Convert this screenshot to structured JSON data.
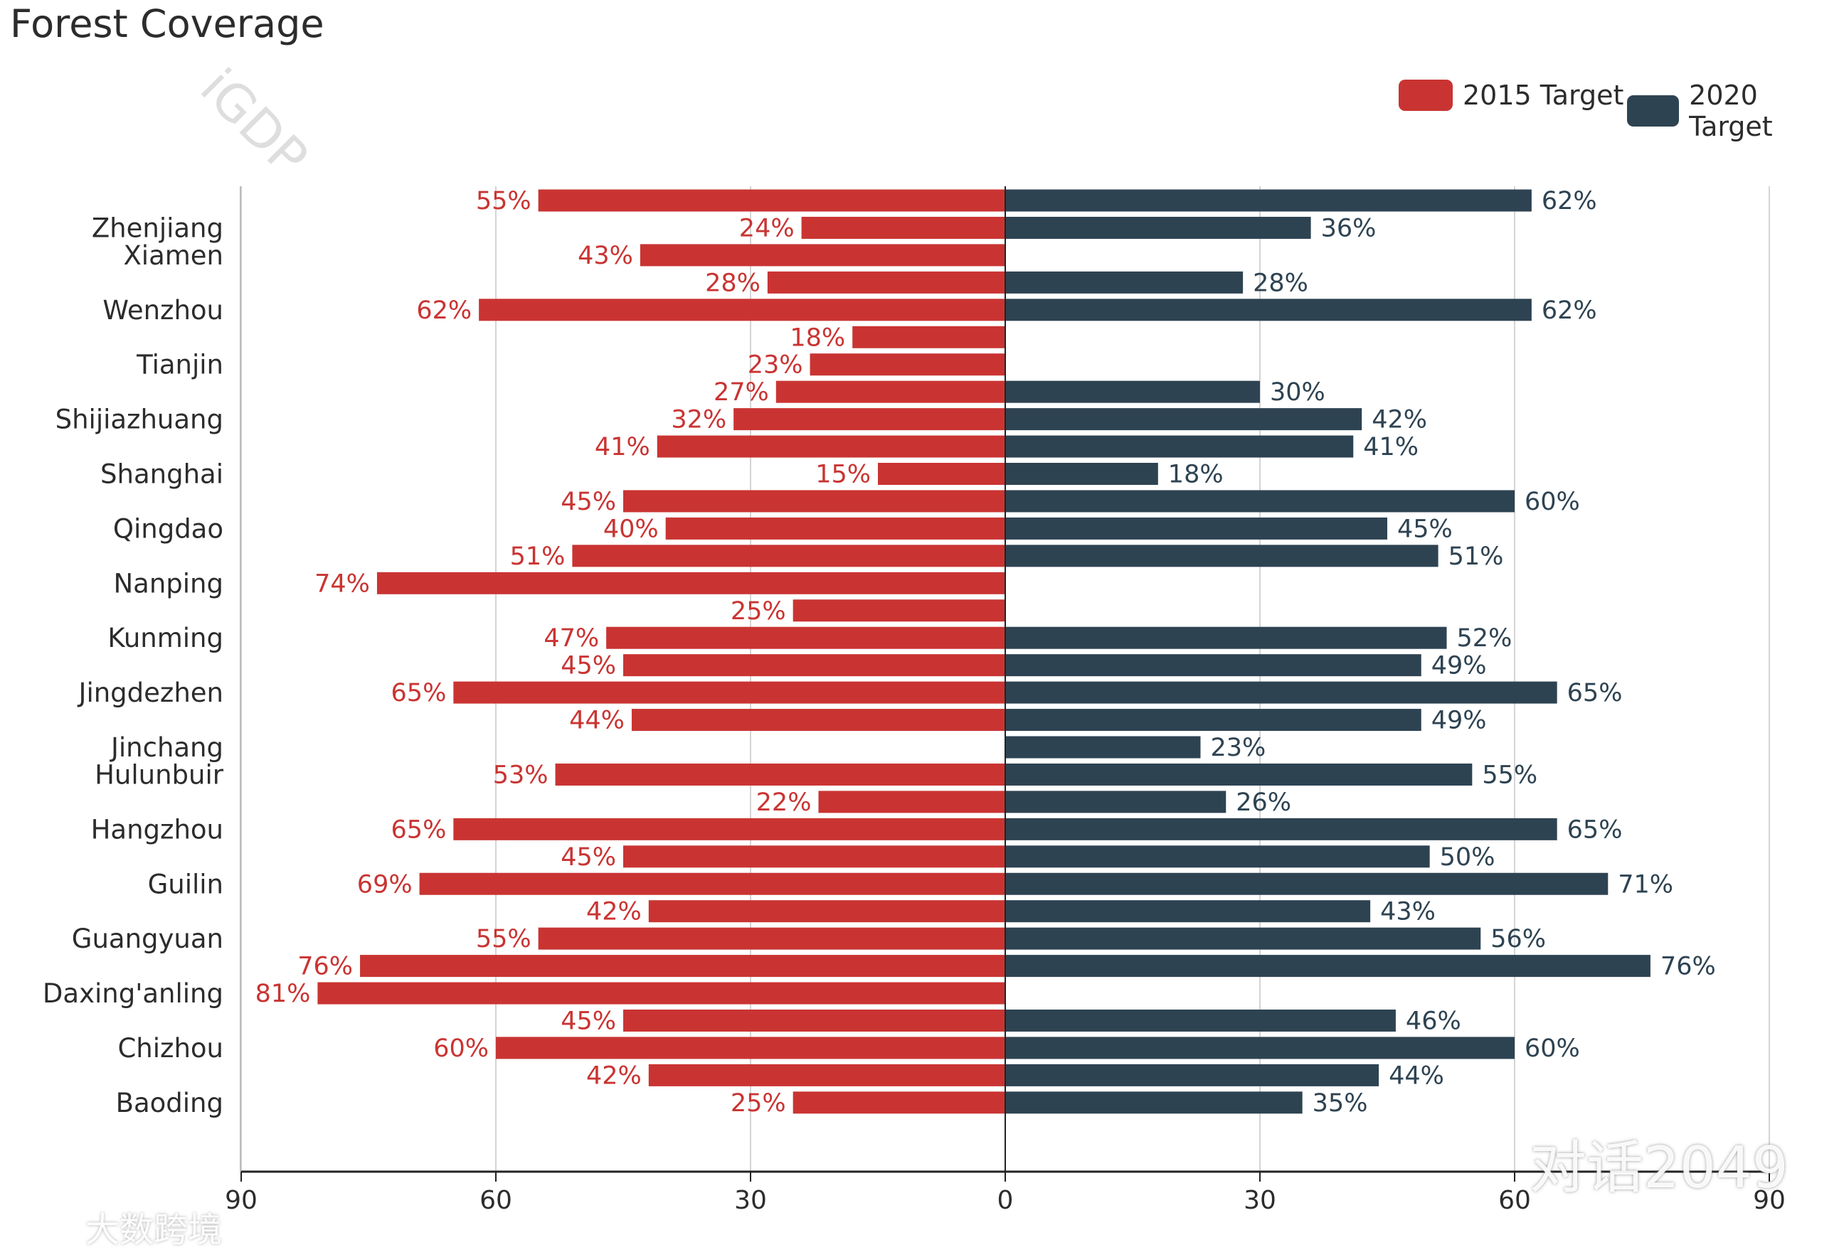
{
  "chart_data": {
    "type": "bar",
    "orientation": "horizontal-diverging",
    "title": "Forest Coverage",
    "categories": [
      "Zhenjiang",
      "Xiamen",
      "Wenzhou",
      "Tianjin",
      "Shijiazhuang",
      "Shanghai",
      "Qingdao",
      "Nanping",
      "Kunming",
      "Jingdezhen",
      "Jinchang",
      "Hulunbuir",
      "Hangzhou",
      "Guilin",
      "Guangyuan",
      "Daxing'anling",
      "Chizhou",
      "Baoding"
    ],
    "rows": [
      {
        "t2015": 55,
        "t2020": 62
      },
      {
        "t2015": 24,
        "t2020": 36,
        "category": "Zhenjiang"
      },
      {
        "t2015": 43,
        "t2020": null,
        "category": "Xiamen"
      },
      {
        "t2015": 28,
        "t2020": 28
      },
      {
        "t2015": 62,
        "t2020": 62,
        "category": "Wenzhou"
      },
      {
        "t2015": 18,
        "t2020": null
      },
      {
        "t2015": 23,
        "t2020": null,
        "category": "Tianjin"
      },
      {
        "t2015": 27,
        "t2020": 30
      },
      {
        "t2015": 32,
        "t2020": 42,
        "category": "Shijiazhuang"
      },
      {
        "t2015": 41,
        "t2020": 41
      },
      {
        "t2015": 15,
        "t2020": 18,
        "category": "Shanghai"
      },
      {
        "t2015": 45,
        "t2020": 60
      },
      {
        "t2015": 40,
        "t2020": 45,
        "category": "Qingdao"
      },
      {
        "t2015": 51,
        "t2020": 51
      },
      {
        "t2015": 74,
        "t2020": null,
        "category": "Nanping"
      },
      {
        "t2015": 25,
        "t2020": null
      },
      {
        "t2015": 47,
        "t2020": 52,
        "category": "Kunming"
      },
      {
        "t2015": 45,
        "t2020": 49
      },
      {
        "t2015": 65,
        "t2020": 65,
        "category": "Jingdezhen"
      },
      {
        "t2015": 44,
        "t2020": 49
      },
      {
        "t2015": null,
        "t2020": 23,
        "category": "Jinchang"
      },
      {
        "t2015": 53,
        "t2020": 55,
        "category": "Hulunbuir"
      },
      {
        "t2015": 22,
        "t2020": 26
      },
      {
        "t2015": 65,
        "t2020": 65,
        "category": "Hangzhou"
      },
      {
        "t2015": 45,
        "t2020": 50
      },
      {
        "t2015": 69,
        "t2020": 71,
        "category": "Guilin"
      },
      {
        "t2015": 42,
        "t2020": 43
      },
      {
        "t2015": 55,
        "t2020": 56,
        "category": "Guangyuan"
      },
      {
        "t2015": 76,
        "t2020": 76
      },
      {
        "t2015": 81,
        "t2020": null,
        "category": "Daxing'anling"
      },
      {
        "t2015": 45,
        "t2020": 46
      },
      {
        "t2015": 60,
        "t2020": 60,
        "category": "Chizhou"
      },
      {
        "t2015": 42,
        "t2020": 44
      },
      {
        "t2015": 25,
        "t2020": 35,
        "category": "Baoding"
      }
    ],
    "series": [
      {
        "key": "t2015",
        "name": "2015 Target",
        "color": "#c93432",
        "side": "left"
      },
      {
        "key": "t2020",
        "name": "2020 Target",
        "color": "#2e4352",
        "side": "right"
      }
    ],
    "xticks": [
      "90",
      "60",
      "30",
      "0",
      "30",
      "60",
      "90"
    ],
    "xlim": [
      -90,
      90
    ],
    "grid": true,
    "legend_position": "top-right",
    "value_suffix": "%"
  },
  "watermarks": {
    "brand_left": "大数跨境",
    "brand_right": "对话2049",
    "tile": "iGDP"
  }
}
